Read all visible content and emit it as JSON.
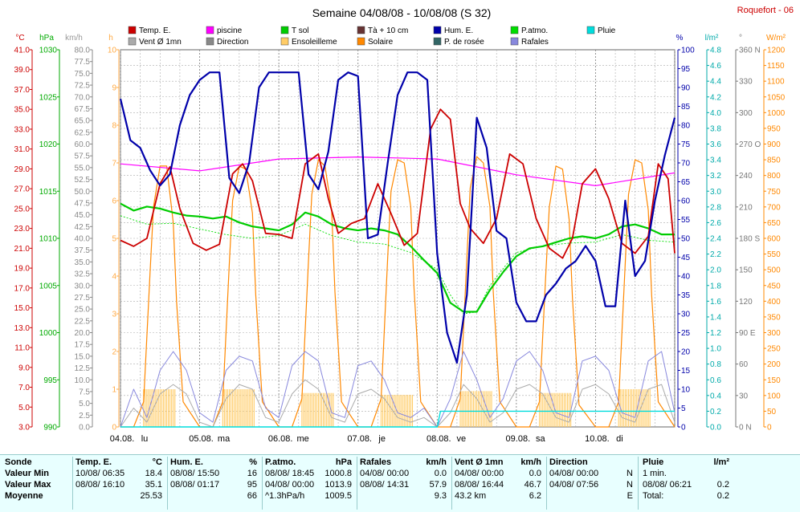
{
  "header": {
    "title": "Semaine 04/08/08 - 10/08/08 (S 32)",
    "station": "Roquefort - 06"
  },
  "colors": {
    "temp": "#cc0000",
    "piscine": "#ff00ff",
    "tsol": "#00cc00",
    "t10": "#663333",
    "hum": "#0000aa",
    "patmo": "#00dd00",
    "pluie": "#00dddd",
    "vent": "#aaaaaa",
    "direction": "#888888",
    "ensoleillement": "#ffcc66",
    "solaire": "#ff8800",
    "rosee": "#336666",
    "rafales": "#8888dd",
    "grid": "#aaaaaa"
  },
  "legend": [
    {
      "key": "temp",
      "label": "Temp. E."
    },
    {
      "key": "piscine",
      "label": "piscine"
    },
    {
      "key": "tsol",
      "label": "T sol"
    },
    {
      "key": "t10",
      "label": "Tà + 10 cm"
    },
    {
      "key": "hum",
      "label": "Hum. E."
    },
    {
      "key": "patmo",
      "label": "P.atmo."
    },
    {
      "key": "pluie",
      "label": "Pluie"
    },
    {
      "key": "vent",
      "label": "Vent Ø 1mn"
    },
    {
      "key": "direction",
      "label": "Direction"
    },
    {
      "key": "ensoleillement",
      "label": "Ensoleilleme"
    },
    {
      "key": "solaire",
      "label": "Solaire"
    },
    {
      "key": "rosee",
      "label": "P. de rosée"
    },
    {
      "key": "rafales",
      "label": "Rafales"
    }
  ],
  "axes": {
    "temp": {
      "unit": "°C",
      "ticks": [
        "41.0",
        "39.0",
        "37.0",
        "35.0",
        "33.0",
        "31.0",
        "29.0",
        "27.0",
        "25.0",
        "23.0",
        "21.0",
        "19.0",
        "17.0",
        "15.0",
        "13.0",
        "11.0",
        "9.0",
        "7.0",
        "5.0",
        "3.0"
      ]
    },
    "pressure": {
      "unit": "hPa",
      "ticks": [
        "1030",
        "1025",
        "1020",
        "1015",
        "1010",
        "1005",
        "1000",
        "995",
        "990"
      ]
    },
    "wind": {
      "unit": "km/h",
      "ticks": [
        "80.0",
        "77.5",
        "75.0",
        "72.5",
        "70.0",
        "67.5",
        "65.0",
        "62.5",
        "60.0",
        "57.5",
        "55.0",
        "52.5",
        "50.0",
        "47.5",
        "45.0",
        "42.5",
        "40.0",
        "37.5",
        "35.0",
        "32.5",
        "30.0",
        "27.5",
        "25.0",
        "22.5",
        "20.0",
        "17.5",
        "15.0",
        "12.5",
        "10.0",
        "7.5",
        "5.0",
        "2.5",
        "0.0"
      ]
    },
    "sun": {
      "unit": "h",
      "ticks": [
        "10",
        "9",
        "8",
        "7",
        "6",
        "5",
        "4",
        "3",
        "2",
        "1",
        "0"
      ]
    },
    "hum": {
      "unit": "%",
      "ticks": [
        "100",
        "95",
        "90",
        "85",
        "80",
        "75",
        "70",
        "65",
        "60",
        "55",
        "50",
        "45",
        "40",
        "35",
        "30",
        "25",
        "20",
        "15",
        "10",
        "5",
        "0"
      ]
    },
    "rain": {
      "unit": "l/m²",
      "ticks": [
        "4.8",
        "4.6",
        "4.4",
        "4.2",
        "4.0",
        "3.8",
        "3.6",
        "3.4",
        "3.2",
        "3.0",
        "2.8",
        "2.6",
        "2.4",
        "2.2",
        "2.0",
        "1.8",
        "1.6",
        "1.4",
        "1.2",
        "1.0",
        "0.8",
        "0.6",
        "0.4",
        "0.2",
        "0.0"
      ]
    },
    "dir": {
      "unit": "°",
      "ticks": [
        {
          "v": "360 N",
          "f": 1
        },
        {
          "v": "330",
          "f": 0.9167
        },
        {
          "v": "300",
          "f": 0.8333
        },
        {
          "v": "270 O",
          "f": 0.75
        },
        {
          "v": "240",
          "f": 0.6667
        },
        {
          "v": "210",
          "f": 0.5833
        },
        {
          "v": "180 S",
          "f": 0.5
        },
        {
          "v": "150",
          "f": 0.4167
        },
        {
          "v": "120",
          "f": 0.3333
        },
        {
          "v": "90 E",
          "f": 0.25
        },
        {
          "v": "60",
          "f": 0.1667
        },
        {
          "v": "30",
          "f": 0.0833
        },
        {
          "v": "0 N",
          "f": 0
        }
      ]
    },
    "solar": {
      "unit": "W/m²",
      "ticks": [
        "1200",
        "1150",
        "1100",
        "1050",
        "1000",
        "950",
        "900",
        "850",
        "800",
        "750",
        "700",
        "650",
        "600",
        "550",
        "500",
        "450",
        "400",
        "350",
        "300",
        "250",
        "200",
        "150",
        "100",
        "50",
        "0"
      ]
    }
  },
  "days": [
    {
      "date": "04.08.",
      "day": "lu"
    },
    {
      "date": "05.08.",
      "day": "ma"
    },
    {
      "date": "06.08.",
      "day": "me"
    },
    {
      "date": "07.08.",
      "day": "je"
    },
    {
      "date": "08.08.",
      "day": "ve"
    },
    {
      "date": "09.08.",
      "day": "sa"
    },
    {
      "date": "10.08.",
      "day": "di"
    }
  ],
  "chart_data": {
    "type": "line",
    "title": "Semaine 04/08/08 - 10/08/08 (S 32)",
    "x_range_hours": [
      0,
      168
    ],
    "grid": true,
    "series": [
      {
        "name": "Temp. E.",
        "axis": "temp",
        "x": [
          0,
          4,
          8,
          12,
          15,
          18,
          22,
          26,
          30,
          34,
          37,
          40,
          44,
          48,
          52,
          56,
          60,
          63,
          66,
          70,
          74,
          78,
          82,
          86,
          90,
          94,
          97,
          100,
          103,
          106,
          110,
          114,
          118,
          122,
          126,
          130,
          134,
          137,
          140,
          144,
          148,
          152,
          156,
          160,
          163,
          166,
          168
        ],
        "y": [
          21.8,
          21.2,
          22.0,
          27.5,
          29.2,
          25.0,
          21.5,
          20.8,
          21.4,
          28.5,
          29.5,
          27.8,
          22.5,
          22.4,
          22.0,
          29.5,
          30.5,
          26.0,
          22.5,
          23.5,
          24.0,
          27.5,
          24.5,
          21.3,
          22.5,
          33.0,
          35.0,
          34.0,
          25.5,
          23.0,
          21.5,
          24.0,
          30.5,
          29.5,
          24.0,
          21.0,
          20.0,
          22.0,
          27.5,
          29.0,
          26.0,
          21.5,
          20.5,
          22.2,
          29.5,
          28.0,
          20.5
        ]
      },
      {
        "name": "piscine",
        "axis": "temp",
        "x": [
          0,
          24,
          48,
          72,
          96,
          120,
          144,
          168
        ],
        "y": [
          29.5,
          28.8,
          30.0,
          30.2,
          30.0,
          28.4,
          27.3,
          28.6
        ]
      },
      {
        "name": "T sol",
        "axis": "temp",
        "x": [
          0,
          4,
          8,
          12,
          16,
          20,
          24,
          28,
          32,
          36,
          40,
          44,
          48,
          52,
          56,
          60,
          64,
          68,
          72,
          76,
          80,
          84,
          88,
          92,
          96,
          100,
          104,
          108,
          112,
          116,
          120,
          124,
          128,
          132,
          136,
          140,
          144,
          148,
          152,
          156,
          160,
          164,
          168
        ],
        "y": [
          25.5,
          24.8,
          25.2,
          25.0,
          24.6,
          24.3,
          24.2,
          24.0,
          24.2,
          23.6,
          23.2,
          23.0,
          22.8,
          23.4,
          24.6,
          24.2,
          23.4,
          23.0,
          22.8,
          23.0,
          22.8,
          22.4,
          21.2,
          19.8,
          18.5,
          15.5,
          14.6,
          14.6,
          16.8,
          18.6,
          20.2,
          21.0,
          21.2,
          21.6,
          22.0,
          22.2,
          22.0,
          22.4,
          23.2,
          23.4,
          23.0,
          22.4,
          22.4
        ]
      },
      {
        "name": "Hum. E.",
        "axis": "hum",
        "x": [
          0,
          3,
          6,
          9,
          12,
          15,
          18,
          21,
          24,
          27,
          30,
          33,
          36,
          39,
          42,
          45,
          48,
          51,
          54,
          57,
          60,
          63,
          66,
          69,
          72,
          75,
          78,
          81,
          84,
          87,
          90,
          93,
          96,
          99,
          102,
          105,
          108,
          111,
          114,
          117,
          120,
          123,
          126,
          129,
          132,
          135,
          138,
          141,
          144,
          147,
          150,
          153,
          156,
          159,
          162,
          165,
          168
        ],
        "y": [
          87,
          76,
          74,
          68,
          64,
          67,
          80,
          88,
          92,
          94,
          94,
          66,
          62,
          70,
          90,
          94,
          94,
          94,
          94,
          67,
          63,
          73,
          92,
          94,
          93,
          50,
          51,
          70,
          88,
          94,
          94,
          92,
          46,
          25,
          17,
          35,
          82,
          74,
          52,
          50,
          33,
          28,
          28,
          35,
          38,
          42,
          44,
          48,
          44,
          32,
          32,
          60,
          40,
          44,
          60,
          72,
          82
        ]
      },
      {
        "name": "P.atmo.",
        "axis": "pressure",
        "x": [
          0,
          8,
          16,
          24,
          32,
          40,
          48,
          56,
          64,
          72,
          80,
          88,
          96,
          100,
          104,
          108,
          112,
          116,
          120,
          128,
          136,
          144,
          152,
          160,
          168
        ],
        "y": [
          1012.4,
          1011.5,
          1011.6,
          1011.0,
          1010.4,
          1010.0,
          1010.3,
          1011.5,
          1010.3,
          1009.6,
          1009.4,
          1008.5,
          1006.7,
          1004.0,
          1002.0,
          1002.2,
          1005.0,
          1006.8,
          1008.5,
          1009.2,
          1009.5,
          1009.6,
          1010.4,
          1009.8,
          1009.6
        ]
      },
      {
        "name": "Pluie",
        "axis": "rain",
        "x": [
          0,
          96,
          97,
          168
        ],
        "y": [
          0,
          0,
          0.2,
          0.2
        ]
      },
      {
        "name": "Rafales",
        "axis": "wind",
        "x": [
          0,
          4,
          8,
          12,
          16,
          20,
          24,
          28,
          32,
          36,
          40,
          44,
          48,
          52,
          56,
          60,
          64,
          68,
          72,
          76,
          80,
          84,
          88,
          92,
          96,
          100,
          104,
          108,
          112,
          116,
          120,
          124,
          128,
          132,
          136,
          140,
          144,
          148,
          152,
          156,
          160,
          164,
          168
        ],
        "y": [
          0,
          8,
          2,
          12,
          16,
          12,
          3,
          1,
          12,
          15,
          14,
          4,
          2,
          13,
          16,
          14,
          3,
          2,
          13,
          14,
          10,
          3,
          2,
          4,
          0,
          6,
          16,
          10,
          2,
          6,
          14,
          16,
          12,
          3,
          2,
          14,
          15,
          12,
          3,
          2,
          14,
          16,
          3
        ]
      },
      {
        "name": "Vent Ø 1mn",
        "axis": "wind",
        "x": [
          0,
          4,
          8,
          12,
          16,
          20,
          24,
          28,
          32,
          36,
          40,
          44,
          48,
          52,
          56,
          60,
          64,
          68,
          72,
          76,
          80,
          84,
          88,
          92,
          96,
          100,
          104,
          108,
          112,
          116,
          120,
          124,
          128,
          132,
          136,
          140,
          144,
          148,
          152,
          156,
          160,
          164,
          168
        ],
        "y": [
          0,
          4,
          1,
          7,
          9,
          7,
          1,
          0,
          6,
          9,
          8,
          2,
          1,
          7,
          10,
          8,
          2,
          1,
          7,
          8,
          6,
          2,
          1,
          2,
          0,
          3,
          9,
          6,
          1,
          3,
          8,
          9,
          7,
          2,
          1,
          8,
          9,
          7,
          2,
          1,
          8,
          9,
          1
        ]
      },
      {
        "name": "Solaire",
        "axis": "solar",
        "x": [
          0,
          4,
          7,
          9,
          10,
          12,
          14,
          16,
          17,
          19,
          24,
          28,
          31,
          33,
          34,
          36,
          38,
          40,
          41,
          43,
          48,
          52,
          55,
          57,
          58,
          60,
          62,
          64,
          65,
          67,
          72,
          76,
          79,
          81,
          82,
          84,
          86,
          88,
          89,
          91,
          96,
          100,
          103,
          105,
          106,
          108,
          110,
          112,
          113,
          115,
          120,
          124,
          127,
          129,
          130,
          132,
          134,
          136,
          137,
          139,
          144,
          148,
          151,
          153,
          154,
          156,
          158,
          160,
          161,
          163,
          168
        ],
        "y": [
          0,
          0,
          80,
          500,
          700,
          830,
          830,
          650,
          400,
          80,
          0,
          0,
          80,
          520,
          720,
          830,
          820,
          680,
          420,
          80,
          0,
          0,
          90,
          530,
          740,
          850,
          830,
          690,
          430,
          80,
          0,
          0,
          90,
          540,
          750,
          850,
          840,
          700,
          440,
          80,
          0,
          0,
          90,
          540,
          760,
          860,
          840,
          700,
          430,
          80,
          0,
          0,
          80,
          500,
          700,
          830,
          820,
          660,
          410,
          70,
          0,
          0,
          80,
          520,
          740,
          850,
          840,
          690,
          420,
          80,
          0
        ]
      },
      {
        "name": "Ensoleilleme",
        "axis": "sun",
        "bars": [
          {
            "start": 7,
            "end": 17,
            "h": 1
          },
          {
            "start": 31,
            "end": 41,
            "h": 1
          },
          {
            "start": 55,
            "end": 65,
            "h": 0.9
          },
          {
            "start": 79,
            "end": 89,
            "h": 0.85
          },
          {
            "start": 103,
            "end": 113,
            "h": 0.95
          },
          {
            "start": 127,
            "end": 137,
            "h": 0.9
          },
          {
            "start": 151,
            "end": 161,
            "h": 1
          }
        ]
      }
    ]
  },
  "stats": {
    "sonde": {
      "header": "Sonde",
      "rows": [
        "Valeur Min",
        "Valeur Max",
        "Moyenne"
      ]
    },
    "temp": {
      "header": "Temp. E.",
      "unit": "°C",
      "rows": [
        {
          "date": "10/08/ 06:35",
          "val": "18.4"
        },
        {
          "date": "08/08/ 16:10",
          "val": "35.1"
        },
        {
          "date": "",
          "val": "25.53"
        }
      ]
    },
    "hum": {
      "header": "Hum. E.",
      "unit": "%",
      "rows": [
        {
          "date": "08/08/ 15:50",
          "val": "16"
        },
        {
          "date": "08/08/ 01:17",
          "val": "95"
        },
        {
          "date": "",
          "val": "66"
        }
      ]
    },
    "patmo": {
      "header": "P.atmo.",
      "unit": "hPa",
      "rows": [
        {
          "date": "08/08/ 18:45",
          "val": "1000.8"
        },
        {
          "date": "04/08/ 00:00",
          "val": "1013.9"
        },
        {
          "date": "^1.3hPa/h",
          "val": "1009.5"
        }
      ]
    },
    "rafales": {
      "header": "Rafales",
      "unit": "km/h",
      "rows": [
        {
          "date": "04/08/ 00:00",
          "val": "0.0"
        },
        {
          "date": "08/08/ 14:31",
          "val": "57.9"
        },
        {
          "date": "",
          "val": "9.3"
        }
      ]
    },
    "vent": {
      "header": "Vent Ø 1mn",
      "unit": "km/h",
      "rows": [
        {
          "date": "04/08/ 00:00",
          "val": "0.0"
        },
        {
          "date": "08/08/ 16:44",
          "val": "46.7"
        },
        {
          "date": "43.2 km",
          "val": "6.2"
        }
      ]
    },
    "direction": {
      "header": "Direction",
      "unit": "",
      "rows": [
        {
          "date": "04/08/ 00:00",
          "val": "N"
        },
        {
          "date": "04/08/ 07:56",
          "val": "N"
        },
        {
          "date": "",
          "val": "E"
        }
      ]
    },
    "pluie": {
      "header": "Pluie",
      "unit": "l/m²",
      "rows": [
        {
          "date": "1 min.",
          "val": ""
        },
        {
          "date": "08/08/ 06:21",
          "val": "0.2"
        },
        {
          "date": "Total:",
          "val": "0.2"
        }
      ]
    }
  }
}
